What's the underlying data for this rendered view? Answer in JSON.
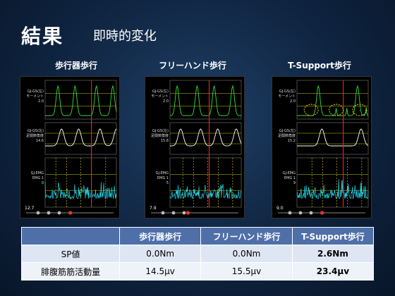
{
  "title": "結果",
  "subtitle": "即時的変化",
  "panels": [
    {
      "label": "歩行器歩行",
      "ch1": "GJ-GS(左)\nモーメント\n2.0",
      "ch2": "GJ-GS(左)\n足関節角度\n14.6",
      "ch3": "GJ-EMG\nEMG 1\n0",
      "time": "12.7",
      "highlight_circles": false
    },
    {
      "label": "フリーハンド歩行",
      "ch1": "GJ-GS(左)\nモーメント\n2.0",
      "ch2": "GJ-GS(左)\n足関節角度\n15.8",
      "ch3": "GJ-EMG\nEMG 1\n5",
      "time": "7.9",
      "highlight_circles": false
    },
    {
      "label": "T-Support歩行",
      "ch1": "GJ-GS(左)\nモーメント\n2.0",
      "ch2": "GJ-GS(左)\n足関節角度\n15.2",
      "ch3": "GJ-EMG\nEMG 1\n9",
      "time": "9.0",
      "highlight_circles": true
    }
  ],
  "table": {
    "header": [
      "",
      "歩行器歩行",
      "フリーハンド歩行",
      "T-Support歩行"
    ],
    "rows": [
      [
        "SP値",
        "0.0Nm",
        "0.0Nm",
        "2.6Nm"
      ],
      [
        "腓腹筋筋活動量",
        "14.5μv",
        "15.5μv",
        "23.4μv"
      ]
    ]
  },
  "colors": {
    "accent_red": "#e01818",
    "header_bg": "#4f6fa8"
  }
}
